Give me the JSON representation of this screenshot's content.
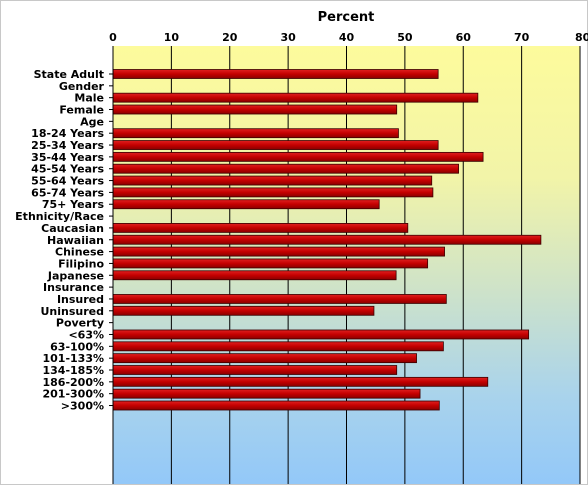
{
  "chart_data": {
    "type": "bar",
    "orientation": "horizontal",
    "title": "Percent",
    "xlim": [
      0,
      80
    ],
    "xticks": [
      0,
      10,
      20,
      30,
      40,
      50,
      60,
      70,
      80
    ],
    "grid": true,
    "bar_color": "#cc0000",
    "rows": [
      {
        "label": "State Adult",
        "value": 55.7
      },
      {
        "label": "Gender",
        "heading": true
      },
      {
        "label": "Male",
        "value": 62.5
      },
      {
        "label": "Female",
        "value": 48.6
      },
      {
        "label": "Age",
        "heading": true
      },
      {
        "label": "18-24 Years",
        "value": 48.9
      },
      {
        "label": "25-34 Years",
        "value": 55.7
      },
      {
        "label": "35-44 Years",
        "value": 63.4
      },
      {
        "label": "45-54 Years",
        "value": 59.2
      },
      {
        "label": "55-64 Years",
        "value": 54.6
      },
      {
        "label": "65-74 Years",
        "value": 54.8
      },
      {
        "label": "75+ Years",
        "value": 45.6
      },
      {
        "label": "Ethnicity/Race",
        "heading": true
      },
      {
        "label": "Caucasian",
        "value": 50.5
      },
      {
        "label": "Hawaiian",
        "value": 73.3
      },
      {
        "label": "Chinese",
        "value": 56.8
      },
      {
        "label": "Filipino",
        "value": 53.9
      },
      {
        "label": "Japanese",
        "value": 48.5
      },
      {
        "label": "Insurance",
        "heading": true
      },
      {
        "label": "Insured",
        "value": 57.1
      },
      {
        "label": "Uninsured",
        "value": 44.7
      },
      {
        "label": "Poverty",
        "heading": true
      },
      {
        "label": "<63%",
        "value": 71.2
      },
      {
        "label": "63-100%",
        "value": 56.6
      },
      {
        "label": "101-133%",
        "value": 52.0
      },
      {
        "label": "134-185%",
        "value": 48.6
      },
      {
        "label": "186-200%",
        "value": 64.2
      },
      {
        "label": "201-300%",
        "value": 52.6
      },
      {
        "label": ">300%",
        "value": 55.9
      }
    ]
  }
}
